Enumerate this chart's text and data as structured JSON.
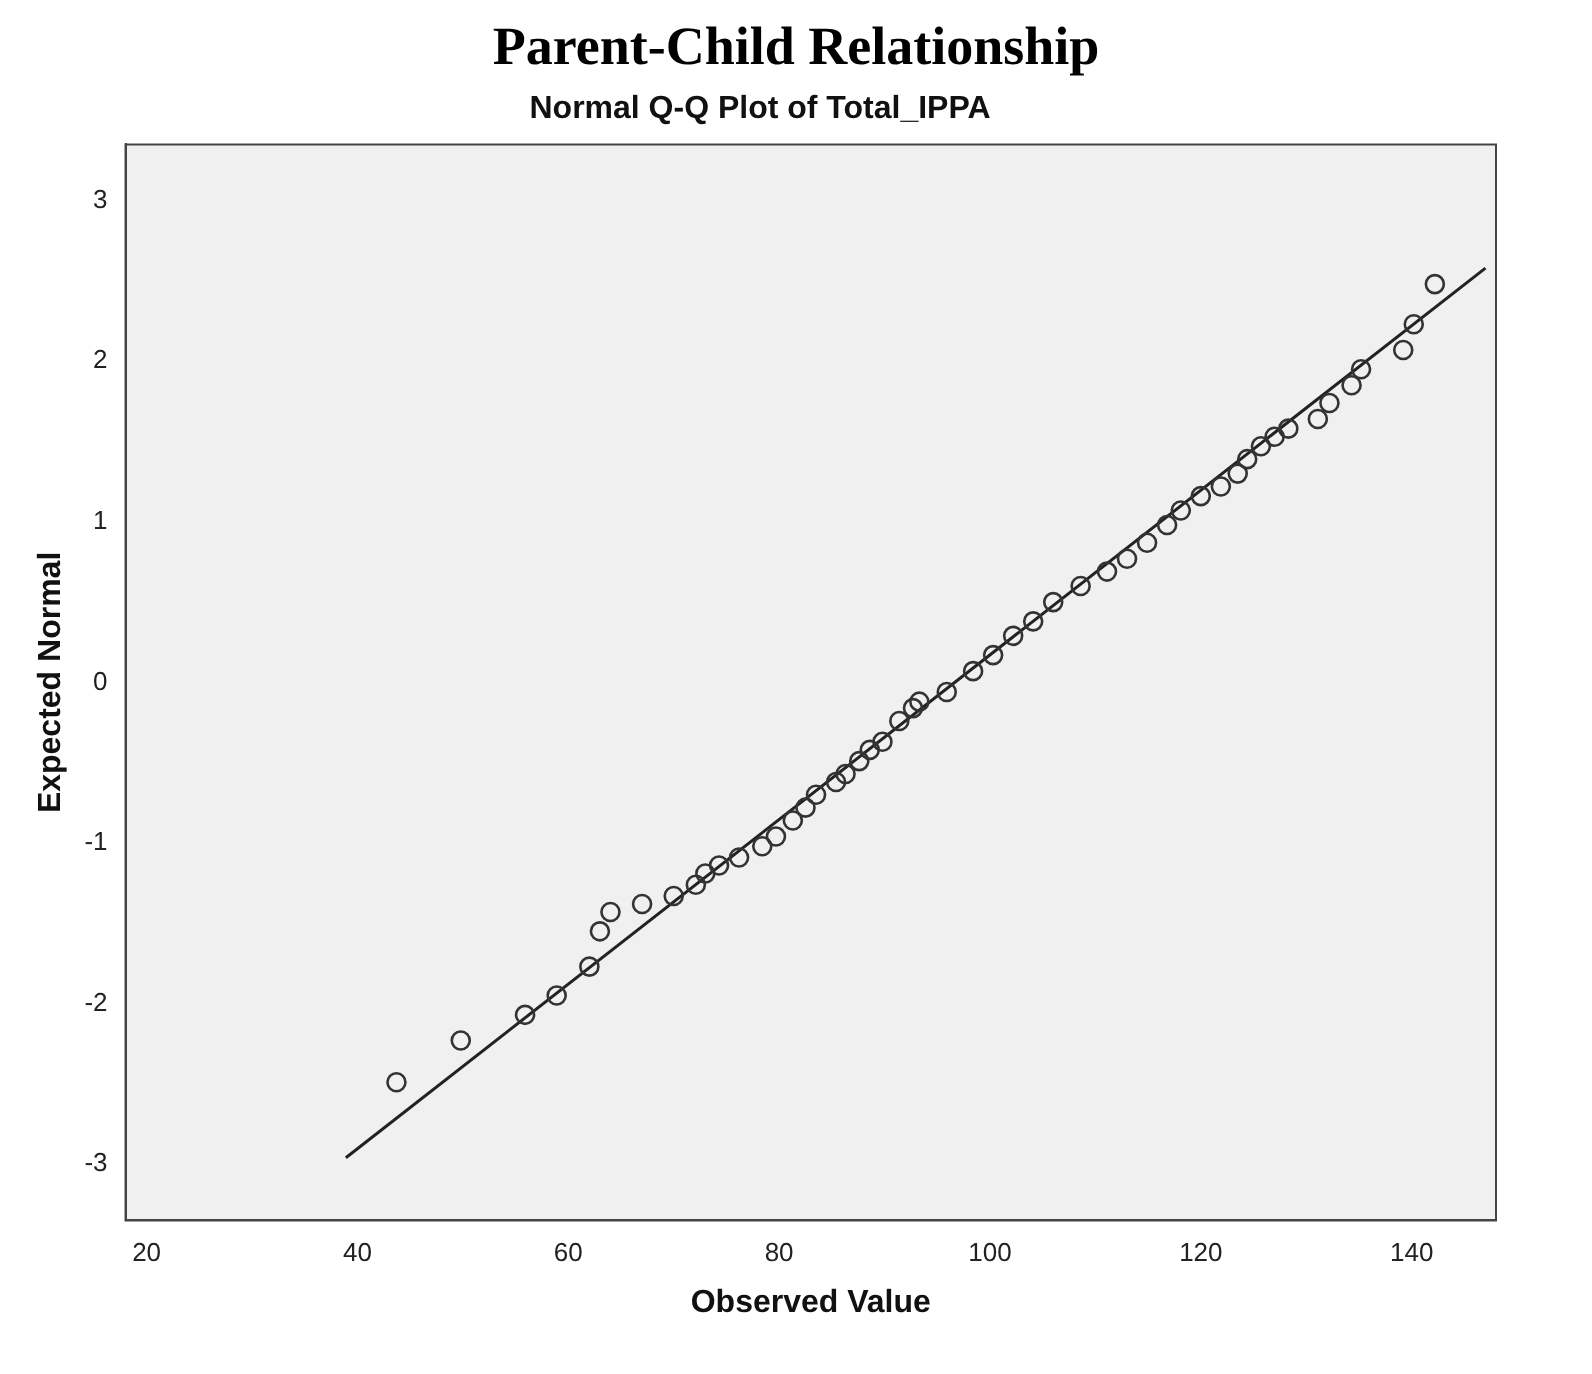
{
  "chart_data": {
    "type": "scatter",
    "title": "Parent-Child Relationship",
    "subtitle": "Normal Q-Q Plot of Total_IPPA",
    "xlabel": "Observed Value",
    "ylabel": "Expected Normal",
    "xlim": [
      18,
      148
    ],
    "xticks": [
      20,
      40,
      60,
      80,
      100,
      120,
      140
    ],
    "ylim": [
      -3.35,
      3.35
    ],
    "yticks": [
      -3,
      -2,
      -1,
      0,
      1,
      2,
      3
    ],
    "grid": false,
    "legend": false,
    "marker": "circle",
    "series": [
      {
        "color": "#333333",
        "x": [
          43.7,
          49.8,
          55.9,
          58.9,
          62.0,
          63.0,
          64.0,
          67.0,
          70.0,
          72.1,
          73.0,
          74.3,
          76.2,
          78.4,
          79.7,
          81.3,
          82.5,
          83.5,
          85.4,
          86.3,
          87.6,
          88.6,
          89.8,
          91.4,
          92.7,
          93.3,
          95.9,
          98.4,
          100.3,
          102.2,
          104.1,
          106.0,
          108.6,
          111.1,
          113.0,
          114.9,
          116.8,
          118.1,
          120.0,
          121.9,
          123.5,
          124.4,
          125.7,
          127.0,
          128.3,
          131.1,
          132.2,
          134.3,
          135.2,
          139.2,
          140.2,
          142.2
        ],
        "values": [
          -2.49,
          -2.23,
          -2.07,
          -1.95,
          -1.77,
          -1.55,
          -1.43,
          -1.38,
          -1.33,
          -1.26,
          -1.19,
          -1.14,
          -1.09,
          -1.02,
          -0.96,
          -0.86,
          -0.78,
          -0.7,
          -0.62,
          -0.57,
          -0.49,
          -0.42,
          -0.37,
          -0.24,
          -0.16,
          -0.12,
          -0.06,
          0.07,
          0.17,
          0.29,
          0.38,
          0.5,
          0.6,
          0.69,
          0.77,
          0.87,
          0.98,
          1.07,
          1.16,
          1.22,
          1.3,
          1.39,
          1.47,
          1.53,
          1.58,
          1.64,
          1.74,
          1.85,
          1.95,
          2.07,
          2.23,
          2.48
        ]
      },
      {
        "type": "line",
        "color": "#222222",
        "marker": "none",
        "line_style": "solid",
        "x": [
          38.9,
          147
        ],
        "values": [
          -2.96,
          2.58
        ]
      }
    ]
  }
}
